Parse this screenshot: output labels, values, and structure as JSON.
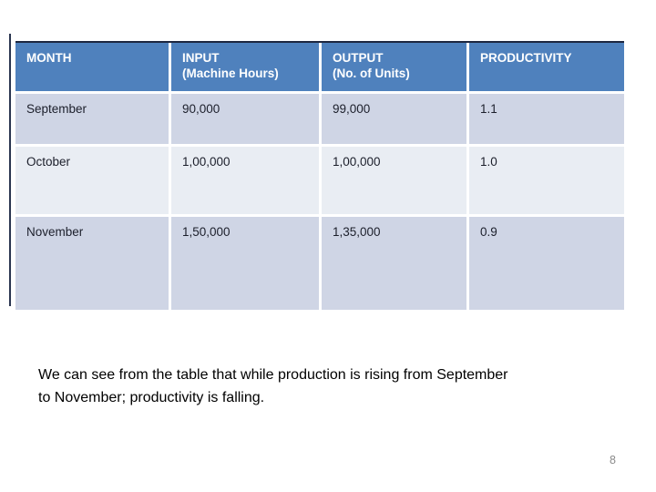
{
  "table": {
    "columns": [
      {
        "title": "MONTH",
        "subtitle": ""
      },
      {
        "title": "INPUT",
        "subtitle": "(Machine Hours)"
      },
      {
        "title": "OUTPUT",
        "subtitle": "(No. of Units)"
      },
      {
        "title": "PRODUCTIVITY",
        "subtitle": ""
      }
    ],
    "rows": [
      {
        "month": "September",
        "input": "90,000",
        "output": "99,000",
        "productivity": "1.1"
      },
      {
        "month": "October",
        "input": "1,00,000",
        "output": "1,00,000",
        "productivity": "1.0"
      },
      {
        "month": "November",
        "input": "1,50,000",
        "output": "1,35,000",
        "productivity": "0.9"
      }
    ]
  },
  "chart_data": {
    "type": "table",
    "columns": [
      "MONTH",
      "INPUT (Machine Hours)",
      "OUTPUT (No. of Units)",
      "PRODUCTIVITY"
    ],
    "rows": [
      [
        "September",
        "90,000",
        "99,000",
        "1.1"
      ],
      [
        "October",
        "1,00,000",
        "1,00,000",
        "1.0"
      ],
      [
        "November",
        "1,50,000",
        "1,35,000",
        "0.9"
      ]
    ]
  },
  "note": {
    "lines": [
      "We can see from the table that while production is rising from September",
      "to November; productivity is falling."
    ]
  },
  "footer": {
    "page_number": "8"
  },
  "colors": {
    "header_bg": "#4f81bd",
    "band_dark": "#cfd5e5",
    "band_light": "#e9edf3",
    "border_dark": "#1d2740",
    "header_text": "#ffffff",
    "cell_text": "#1c1f2b",
    "page_number_text": "#8a8a8a"
  }
}
